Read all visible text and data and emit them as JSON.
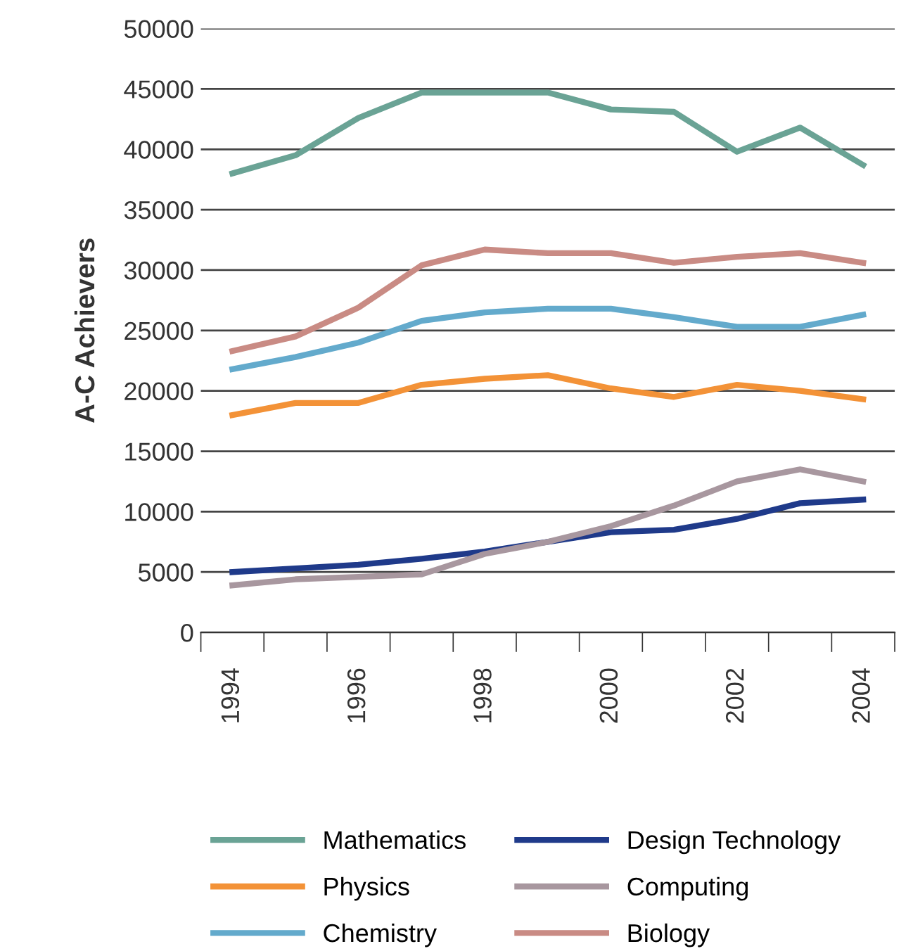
{
  "chart_data": {
    "type": "line",
    "ylabel": "A-C Achievers",
    "categories": [
      "1994",
      null,
      "1996",
      null,
      "1998",
      null,
      "2000",
      null,
      "2002",
      null,
      "2004"
    ],
    "series": [
      {
        "name": "Mathematics",
        "color": "#6aa395",
        "values": [
          38000,
          39500,
          42600,
          44700,
          44700,
          44700,
          43300,
          43100,
          39800,
          41800,
          38700
        ]
      },
      {
        "name": "Physics",
        "color": "#f39237",
        "values": [
          18000,
          19000,
          19000,
          20500,
          21000,
          21300,
          20200,
          19500,
          20500,
          20000,
          19300
        ]
      },
      {
        "name": "Chemistry",
        "color": "#63aacc",
        "values": [
          21800,
          22800,
          24000,
          25800,
          26500,
          26800,
          26800,
          26100,
          25300,
          25300,
          26300
        ]
      },
      {
        "name": "Design Technology",
        "color": "#1f3a8a",
        "values": [
          5000,
          5300,
          5600,
          6100,
          6700,
          7500,
          8300,
          8500,
          9400,
          10700,
          11000
        ]
      },
      {
        "name": "Computing",
        "color": "#a8979f",
        "values": [
          3900,
          4400,
          4600,
          4800,
          6500,
          7500,
          8800,
          10500,
          12500,
          13500,
          12500
        ]
      },
      {
        "name": "Biology",
        "color": "#c98b84",
        "values": [
          23300,
          24500,
          26900,
          30400,
          31700,
          31400,
          31400,
          30600,
          31100,
          31400,
          30600
        ]
      }
    ],
    "ylim": [
      0,
      50000
    ],
    "yticks": [
      0,
      5000,
      10000,
      15000,
      20000,
      25000,
      30000,
      35000,
      40000,
      45000,
      50000
    ],
    "grid": "y",
    "legend": "bottom",
    "marker": "none",
    "line_style": "solid"
  }
}
